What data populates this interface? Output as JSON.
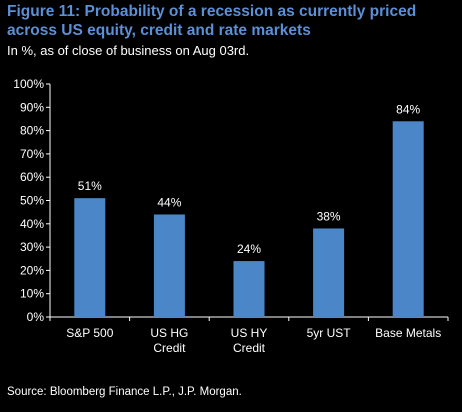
{
  "figure": {
    "title": "Figure 11: Probability of a recession as currently priced across US equity, credit and rate markets",
    "subtitle": "In %, as of close of business on Aug 03rd.",
    "source": "Source: Bloomberg Finance L.P., J.P. Morgan."
  },
  "chart_data": {
    "type": "bar",
    "categories": [
      [
        "S&P 500"
      ],
      [
        "US HG",
        "Credit"
      ],
      [
        "US HY",
        "Credit"
      ],
      [
        "5yr UST"
      ],
      [
        "Base Metals"
      ]
    ],
    "values": [
      51,
      44,
      24,
      38,
      84
    ],
    "data_labels": [
      "51%",
      "44%",
      "24%",
      "38%",
      "84%"
    ],
    "ylim": [
      0,
      100
    ],
    "yticks": [
      0,
      10,
      20,
      30,
      40,
      50,
      60,
      70,
      80,
      90,
      100
    ],
    "ytick_labels": [
      "0%",
      "10%",
      "20%",
      "30%",
      "40%",
      "50%",
      "60%",
      "70%",
      "80%",
      "90%",
      "100%"
    ],
    "grid": false,
    "legend": "none",
    "colors": {
      "bar": "#4a86c8",
      "axis": "#ffffff",
      "text": "#ffffff",
      "title": "#5b8fd6",
      "background": "#000000"
    }
  }
}
